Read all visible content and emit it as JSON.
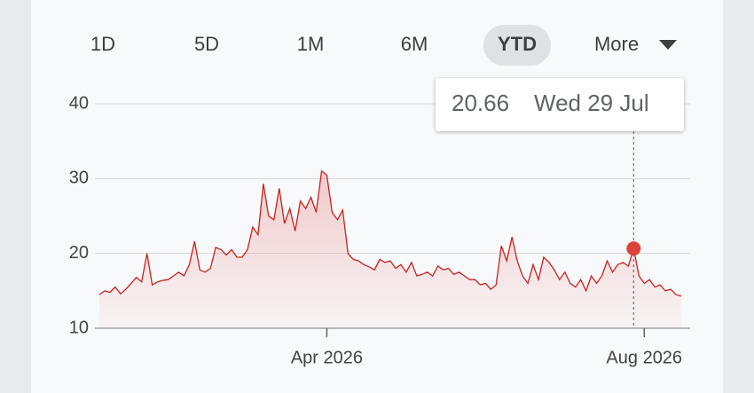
{
  "range_buttons": [
    {
      "label": "1D",
      "selected": false
    },
    {
      "label": "5D",
      "selected": false
    },
    {
      "label": "1M",
      "selected": false
    },
    {
      "label": "6M",
      "selected": false
    },
    {
      "label": "YTD",
      "selected": true
    },
    {
      "label": "More",
      "selected": false
    }
  ],
  "chart_data": {
    "type": "line",
    "color": "#c5221f",
    "marker_color": "#db4437",
    "ylim": [
      10,
      40
    ],
    "yticks": [
      10,
      20,
      30,
      40
    ],
    "grid": true,
    "tooltip": {
      "value": 20.66,
      "date": "Wed 29 Jul"
    },
    "categories": [
      null,
      null,
      null,
      null,
      null,
      null,
      null,
      null,
      null,
      null,
      null,
      null,
      null,
      null,
      null,
      null,
      null,
      null,
      null,
      null,
      null,
      null,
      null,
      null,
      null,
      null,
      null,
      null,
      null,
      null,
      null,
      null,
      null,
      null,
      null,
      null,
      null,
      null,
      null,
      null,
      null,
      null,
      null,
      "Apr 2026",
      null,
      null,
      null,
      null,
      null,
      null,
      null,
      null,
      null,
      null,
      null,
      null,
      null,
      null,
      null,
      null,
      null,
      null,
      null,
      null,
      null,
      null,
      null,
      null,
      null,
      null,
      null,
      null,
      null,
      null,
      null,
      null,
      null,
      null,
      null,
      null,
      null,
      null,
      null,
      null,
      null,
      null,
      null,
      null,
      null,
      null,
      null,
      null,
      null,
      null,
      null,
      null,
      null,
      null,
      null,
      null,
      null,
      null,
      null,
      "Aug 2026",
      null,
      null,
      null,
      null,
      null,
      null,
      null
    ],
    "values": [
      14.5,
      15,
      14.8,
      15.5,
      14.6,
      15.2,
      16,
      16.8,
      16.2,
      20,
      15.8,
      16.2,
      16.4,
      16.5,
      17,
      17.5,
      17,
      18.5,
      21.6,
      17.8,
      17.5,
      18,
      20.8,
      20.5,
      19.8,
      20.5,
      19.5,
      19.5,
      20.5,
      23.5,
      22.5,
      29.3,
      25,
      24.5,
      28.7,
      24,
      26,
      23,
      27,
      26,
      27.5,
      25.5,
      31,
      30.5,
      25.5,
      24.5,
      25.8,
      20,
      19.2,
      19,
      18.5,
      18.2,
      17.8,
      19.2,
      18.8,
      19,
      18,
      18.5,
      17.5,
      18.8,
      17,
      17.2,
      17.5,
      17,
      18.3,
      17.8,
      18,
      17.2,
      17.5,
      17,
      16.5,
      16.5,
      15.8,
      16,
      15.2,
      15.8,
      21,
      19,
      22.2,
      19,
      17,
      16,
      18.5,
      16.5,
      19.5,
      18.8,
      17.8,
      16.5,
      17.5,
      16,
      15.5,
      16.5,
      15,
      17,
      16,
      17,
      19,
      17.5,
      18.5,
      18.8,
      18.3,
      20.66,
      17,
      16,
      16.5,
      15.5,
      15.8,
      15,
      15.2,
      14.5,
      14.3
    ]
  }
}
